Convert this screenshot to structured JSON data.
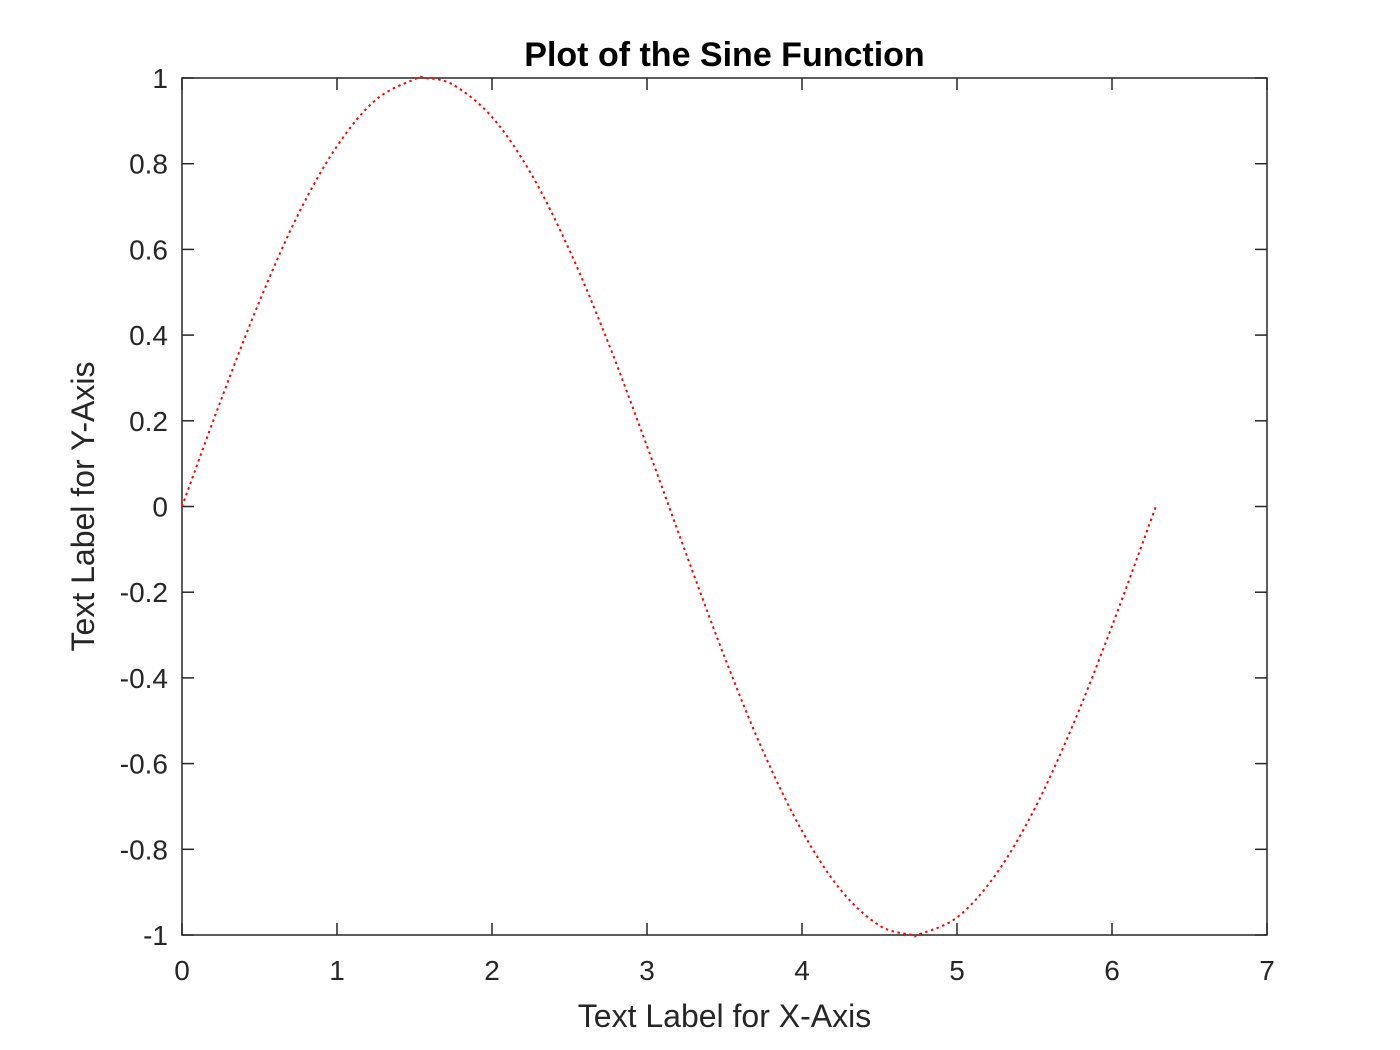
{
  "chart_data": {
    "type": "line",
    "title": "Plot of the Sine Function",
    "xlabel": "Text Label for X-Axis",
    "ylabel": "Text Label for Y-Axis",
    "xlim": [
      0,
      7
    ],
    "ylim": [
      -1,
      1
    ],
    "xticks": [
      0,
      1,
      2,
      3,
      4,
      5,
      6,
      7
    ],
    "xtick_labels": [
      "0",
      "1",
      "2",
      "3",
      "4",
      "5",
      "6",
      "7"
    ],
    "yticks": [
      -1,
      -0.8,
      -0.6,
      -0.4,
      -0.2,
      0,
      0.2,
      0.4,
      0.6,
      0.8,
      1
    ],
    "ytick_labels": [
      "-1",
      "-0.8",
      "-0.6",
      "-0.4",
      "-0.2",
      "0",
      "0.2",
      "0.4",
      "0.6",
      "0.8",
      "1"
    ],
    "grid": false,
    "series": [
      {
        "color": "#ff0000",
        "line_style": "dotted",
        "x": [
          0,
          0.25,
          0.5,
          0.75,
          1,
          1.25,
          1.5,
          1.571,
          1.75,
          2,
          2.25,
          2.5,
          2.75,
          3,
          3.142,
          3.25,
          3.5,
          3.75,
          4,
          4.25,
          4.5,
          4.712,
          4.75,
          5,
          5.25,
          5.5,
          5.75,
          6,
          6.25,
          6.283
        ],
        "y": [
          0,
          0.247,
          0.479,
          0.682,
          0.841,
          0.949,
          0.997,
          1,
          0.984,
          0.909,
          0.778,
          0.598,
          0.382,
          0.141,
          0,
          -0.108,
          -0.351,
          -0.572,
          -0.757,
          -0.895,
          -0.978,
          -1,
          -0.999,
          -0.959,
          -0.859,
          -0.706,
          -0.508,
          -0.279,
          -0.033,
          0
        ]
      }
    ]
  }
}
